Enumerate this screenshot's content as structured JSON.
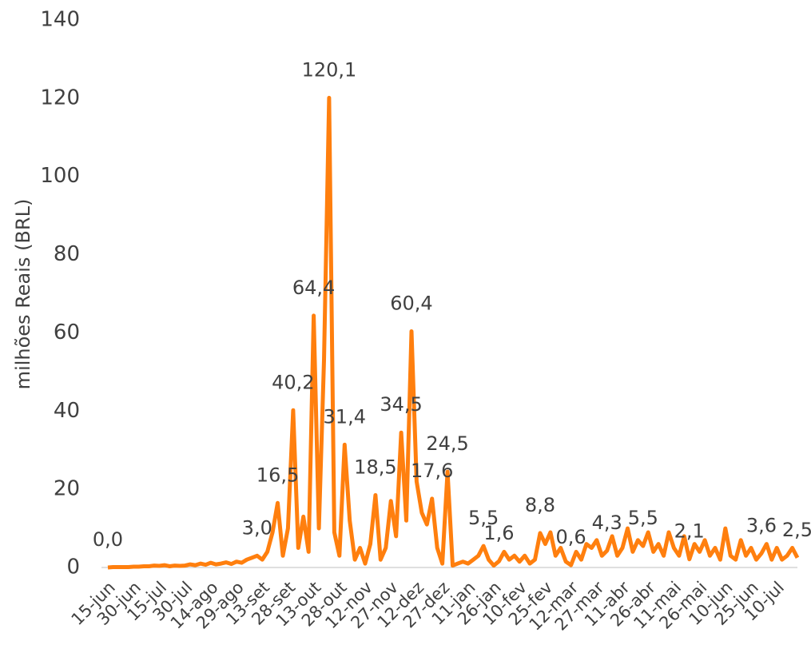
{
  "chart_data": {
    "type": "line",
    "y_label": "milhões Reais (BRL)",
    "categories": [
      "15-jun",
      null,
      null,
      null,
      null,
      "30-jun",
      null,
      null,
      null,
      null,
      "15-jul",
      null,
      null,
      null,
      null,
      "30-jul",
      null,
      null,
      null,
      null,
      "14-ago",
      null,
      null,
      null,
      null,
      "29-ago",
      null,
      null,
      null,
      null,
      "13-set",
      null,
      null,
      null,
      null,
      "28-set",
      null,
      null,
      null,
      null,
      "13-out",
      null,
      null,
      null,
      null,
      "28-out",
      null,
      null,
      null,
      null,
      "12-nov",
      null,
      null,
      null,
      null,
      "27-nov",
      null,
      null,
      null,
      null,
      "12-dez",
      null,
      null,
      null,
      null,
      "27-dez",
      null,
      null,
      null,
      null,
      "11-jan",
      null,
      null,
      null,
      null,
      "26-jan",
      null,
      null,
      null,
      null,
      "10-fev",
      null,
      null,
      null,
      null,
      "25-fev",
      null,
      null,
      null,
      null,
      "12-mar",
      null,
      null,
      null,
      null,
      "27-mar",
      null,
      null,
      null,
      null,
      "11-abr",
      null,
      null,
      null,
      null,
      "26-abr",
      null,
      null,
      null,
      null,
      "11-mai",
      null,
      null,
      null,
      null,
      "26-mai",
      null,
      null,
      null,
      null,
      "10-jun",
      null,
      null,
      null,
      null,
      "25-jun",
      null,
      null,
      null,
      null,
      "10-jul",
      null,
      null,
      null,
      null
    ],
    "series": [
      {
        "name": "milhões Reais (BRL)",
        "color": "#ff7f0e",
        "values": [
          0,
          0.1,
          0.1,
          0.1,
          0.1,
          0.2,
          0.2,
          0.3,
          0.3,
          0.5,
          0.4,
          0.6,
          0.3,
          0.5,
          0.4,
          0.5,
          0.8,
          0.6,
          1,
          0.7,
          1.2,
          0.8,
          1,
          1.3,
          0.9,
          1.5,
          1.2,
          2,
          2.5,
          3.0,
          2,
          4,
          9,
          16.5,
          3,
          10,
          40.2,
          5,
          13,
          4,
          64.4,
          10,
          53,
          120.1,
          9,
          3,
          31.4,
          12,
          2,
          5,
          1,
          6,
          18.5,
          2,
          5,
          17,
          8,
          34.5,
          12,
          60.4,
          22,
          14,
          11,
          17.6,
          5,
          1,
          24.5,
          0.5,
          1,
          1.5,
          1,
          2,
          3,
          5.5,
          2,
          0.5,
          1.6,
          4,
          2,
          3,
          1.5,
          3,
          1,
          2,
          8.8,
          6,
          9,
          3,
          5,
          1.5,
          0.6,
          4,
          2,
          6,
          5,
          7,
          3,
          4.3,
          8,
          3,
          5,
          10,
          4,
          7,
          5.5,
          9,
          4,
          6,
          3,
          9,
          5,
          3,
          8,
          2.1,
          6,
          4,
          7,
          3,
          5,
          2,
          10,
          3,
          2,
          7,
          3,
          5,
          2,
          3.6,
          6,
          2,
          5,
          2,
          3,
          5,
          2.5
        ],
        "value_labels": [
          "0,0",
          null,
          null,
          null,
          null,
          null,
          null,
          null,
          null,
          null,
          null,
          null,
          null,
          null,
          null,
          null,
          null,
          null,
          null,
          null,
          null,
          null,
          null,
          null,
          null,
          null,
          null,
          null,
          null,
          "3,0",
          null,
          null,
          null,
          "16,5",
          null,
          null,
          "40,2",
          null,
          null,
          null,
          "64,4",
          null,
          null,
          "120,1",
          null,
          null,
          "31,4",
          null,
          null,
          null,
          null,
          null,
          "18,5",
          null,
          null,
          null,
          null,
          "34,5",
          null,
          "60,4",
          null,
          null,
          null,
          "17,6",
          null,
          null,
          "24,5",
          null,
          null,
          null,
          null,
          null,
          null,
          "5,5",
          null,
          null,
          "1,6",
          null,
          null,
          null,
          null,
          null,
          null,
          null,
          "8,8",
          null,
          null,
          null,
          null,
          null,
          "0,6",
          null,
          null,
          null,
          null,
          null,
          null,
          "4,3",
          null,
          null,
          null,
          null,
          null,
          null,
          "5,5",
          null,
          null,
          null,
          null,
          null,
          null,
          null,
          null,
          "2,1",
          null,
          null,
          null,
          null,
          null,
          null,
          null,
          null,
          null,
          null,
          null,
          null,
          null,
          "3,6",
          null,
          null,
          null,
          null,
          null,
          null,
          "2,5"
        ]
      }
    ],
    "ylim": [
      0,
      140
    ],
    "yticks": [
      0,
      20,
      40,
      60,
      80,
      100,
      120,
      140
    ],
    "grid": false
  }
}
